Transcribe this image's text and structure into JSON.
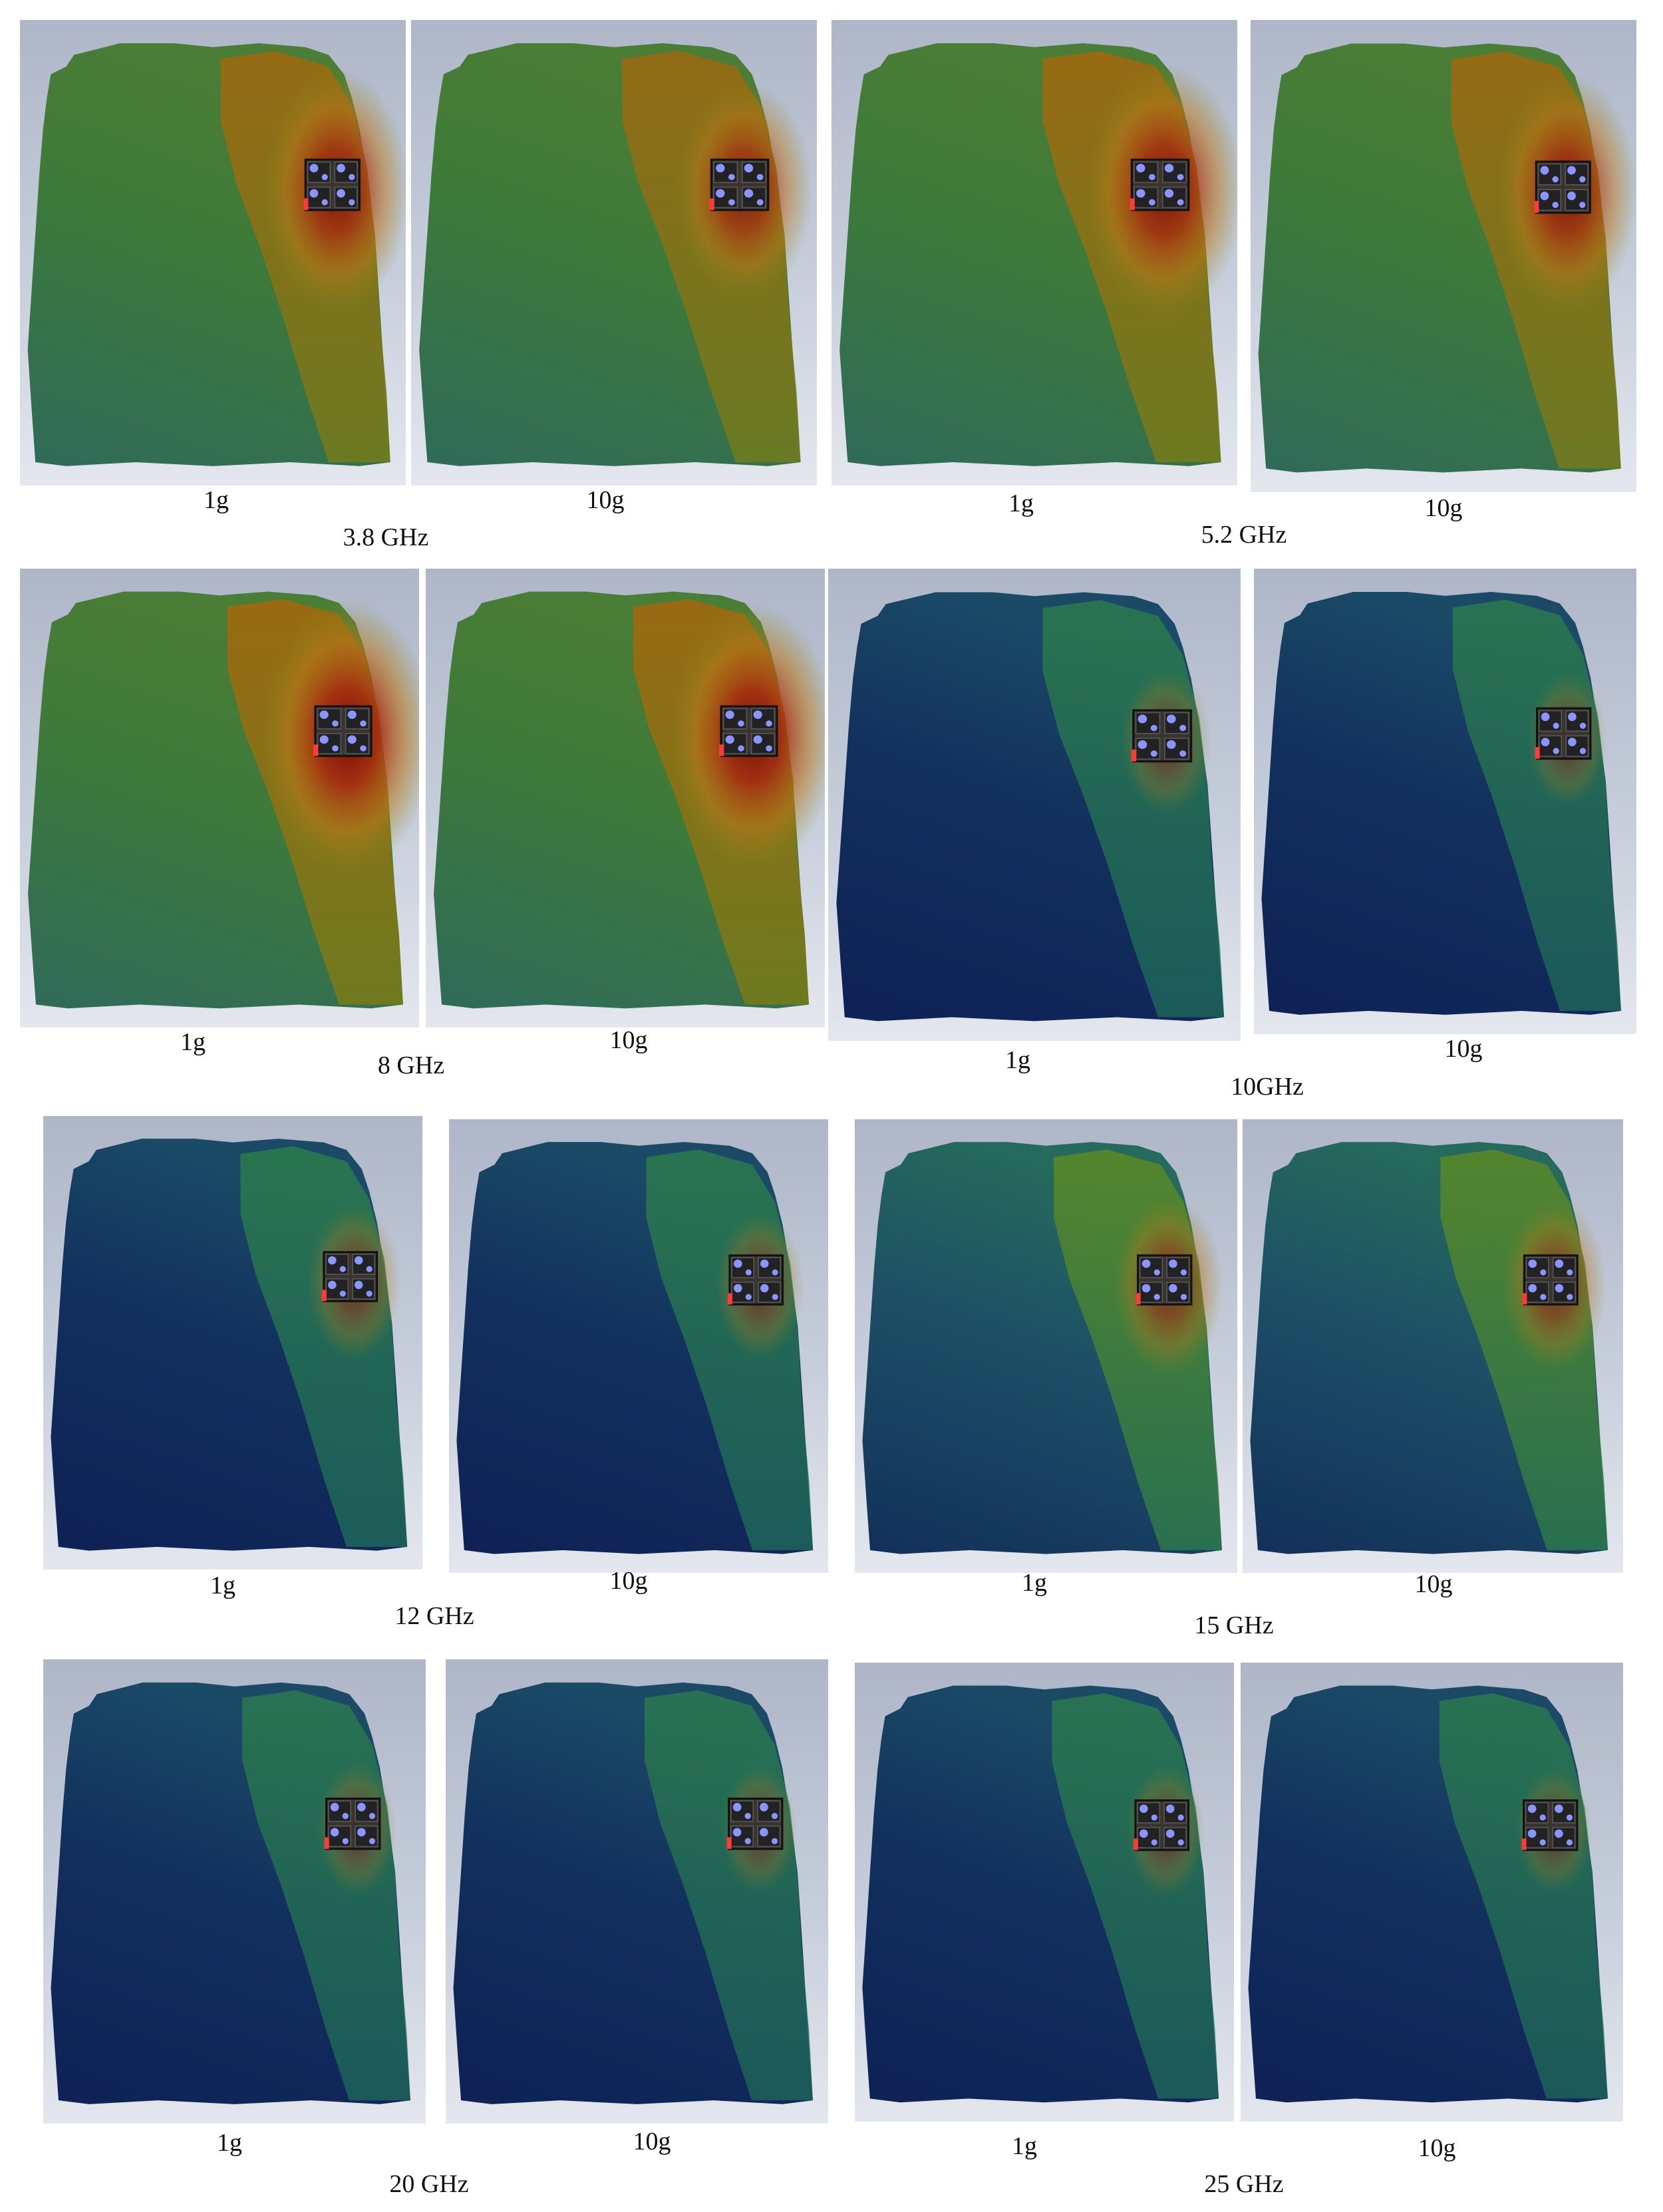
{
  "figure": {
    "groups": [
      {
        "frequency": "3.8 GHz",
        "panels": [
          {
            "label": "1g",
            "heat": 0.8
          },
          {
            "label": "10g",
            "heat": 0.65
          }
        ]
      },
      {
        "frequency": "5.2 GHz",
        "panels": [
          {
            "label": "1g",
            "heat": 0.85
          },
          {
            "label": "10g",
            "heat": 0.75
          }
        ]
      },
      {
        "frequency": "8 GHz",
        "panels": [
          {
            "label": "1g",
            "heat": 1.0
          },
          {
            "label": "10g",
            "heat": 0.95
          }
        ]
      },
      {
        "frequency": "10GHz",
        "panels": [
          {
            "label": "1g",
            "heat": 0.2
          },
          {
            "label": "10g",
            "heat": 0.15
          }
        ]
      },
      {
        "frequency": "12 GHz",
        "panels": [
          {
            "label": "1g",
            "heat": 0.3
          },
          {
            "label": "10g",
            "heat": 0.25
          }
        ]
      },
      {
        "frequency": "15 GHz",
        "panels": [
          {
            "label": "1g",
            "heat": 0.45
          },
          {
            "label": "10g",
            "heat": 0.4
          }
        ]
      },
      {
        "frequency": "20 GHz",
        "panels": [
          {
            "label": "1g",
            "heat": 0.15
          },
          {
            "label": "10g",
            "heat": 0.12
          }
        ]
      },
      {
        "frequency": "25 GHz",
        "panels": [
          {
            "label": "1g",
            "heat": 0.15
          },
          {
            "label": "10g",
            "heat": 0.12
          }
        ]
      }
    ]
  }
}
